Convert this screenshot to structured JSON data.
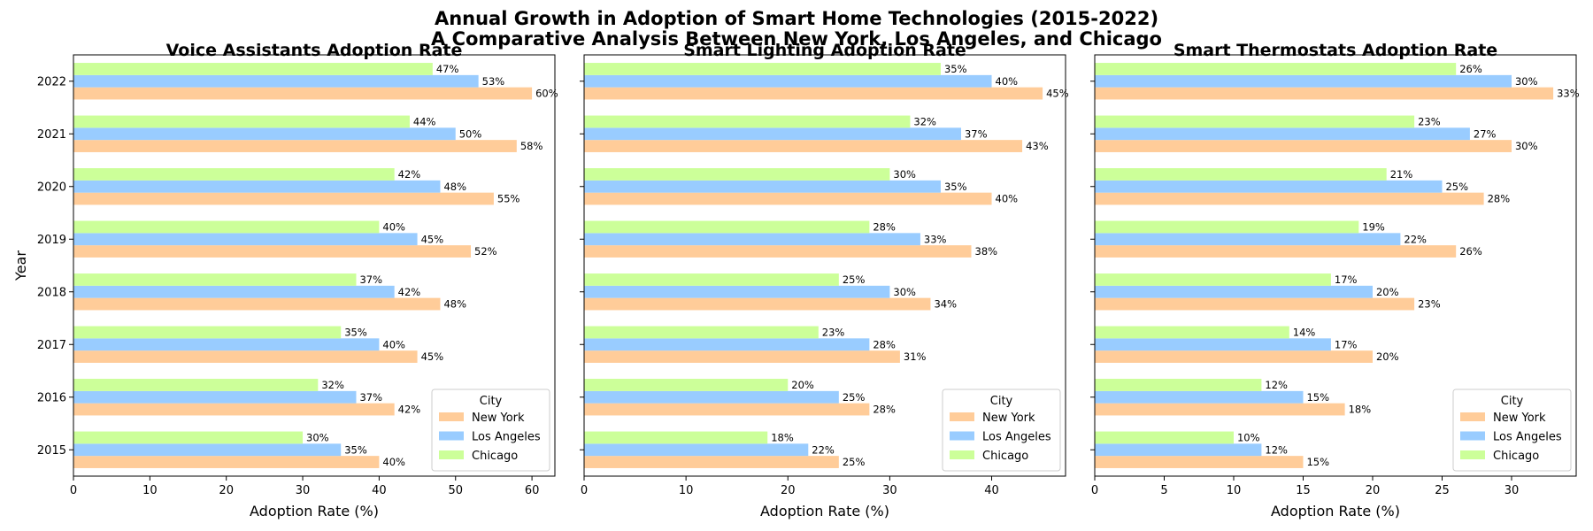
{
  "figure": {
    "title_line1": "Annual Growth in Adoption of Smart Home Technologies (2015-2022)",
    "title_line2": "A Comparative Analysis Between New York, Los Angeles, and Chicago"
  },
  "colors": {
    "New York": "#ffcc99",
    "Los Angeles": "#99ccff",
    "Chicago": "#ccff99"
  },
  "chart_data": [
    {
      "type": "bar",
      "orientation": "horizontal",
      "title": "Voice Assistants Adoption Rate",
      "xlabel": "Adoption Rate (%)",
      "ylabel": "Year",
      "categories": [
        "2015",
        "2016",
        "2017",
        "2018",
        "2019",
        "2020",
        "2021",
        "2022"
      ],
      "xlim": [
        0,
        63
      ],
      "xticks": [
        0,
        10,
        20,
        30,
        40,
        50,
        60
      ],
      "legend": {
        "title": "City",
        "position": "lower-right"
      },
      "series": [
        {
          "name": "New York",
          "values": [
            40,
            42,
            45,
            48,
            52,
            55,
            58,
            60
          ]
        },
        {
          "name": "Los Angeles",
          "values": [
            35,
            37,
            40,
            42,
            45,
            48,
            50,
            53
          ]
        },
        {
          "name": "Chicago",
          "values": [
            30,
            32,
            35,
            37,
            40,
            42,
            44,
            47
          ]
        }
      ]
    },
    {
      "type": "bar",
      "orientation": "horizontal",
      "title": "Smart Lighting Adoption Rate",
      "xlabel": "Adoption Rate (%)",
      "ylabel": "",
      "categories": [
        "2015",
        "2016",
        "2017",
        "2018",
        "2019",
        "2020",
        "2021",
        "2022"
      ],
      "xlim": [
        0,
        47.25
      ],
      "xticks": [
        0,
        10,
        20,
        30,
        40
      ],
      "legend": {
        "title": "City",
        "position": "lower-right"
      },
      "series": [
        {
          "name": "New York",
          "values": [
            25,
            28,
            31,
            34,
            38,
            40,
            43,
            45
          ]
        },
        {
          "name": "Los Angeles",
          "values": [
            22,
            25,
            28,
            30,
            33,
            35,
            37,
            40
          ]
        },
        {
          "name": "Chicago",
          "values": [
            18,
            20,
            23,
            25,
            28,
            30,
            32,
            35
          ]
        }
      ]
    },
    {
      "type": "bar",
      "orientation": "horizontal",
      "title": "Smart Thermostats Adoption Rate",
      "xlabel": "Adoption Rate (%)",
      "ylabel": "",
      "categories": [
        "2015",
        "2016",
        "2017",
        "2018",
        "2019",
        "2020",
        "2021",
        "2022"
      ],
      "xlim": [
        0,
        34.65
      ],
      "xticks": [
        0,
        5,
        10,
        15,
        20,
        25,
        30
      ],
      "legend": {
        "title": "City",
        "position": "lower-right"
      },
      "series": [
        {
          "name": "New York",
          "values": [
            15,
            18,
            20,
            23,
            26,
            28,
            30,
            33
          ]
        },
        {
          "name": "Los Angeles",
          "values": [
            12,
            15,
            17,
            20,
            22,
            25,
            27,
            30
          ]
        },
        {
          "name": "Chicago",
          "values": [
            10,
            12,
            14,
            17,
            19,
            21,
            23,
            26
          ]
        }
      ]
    }
  ]
}
